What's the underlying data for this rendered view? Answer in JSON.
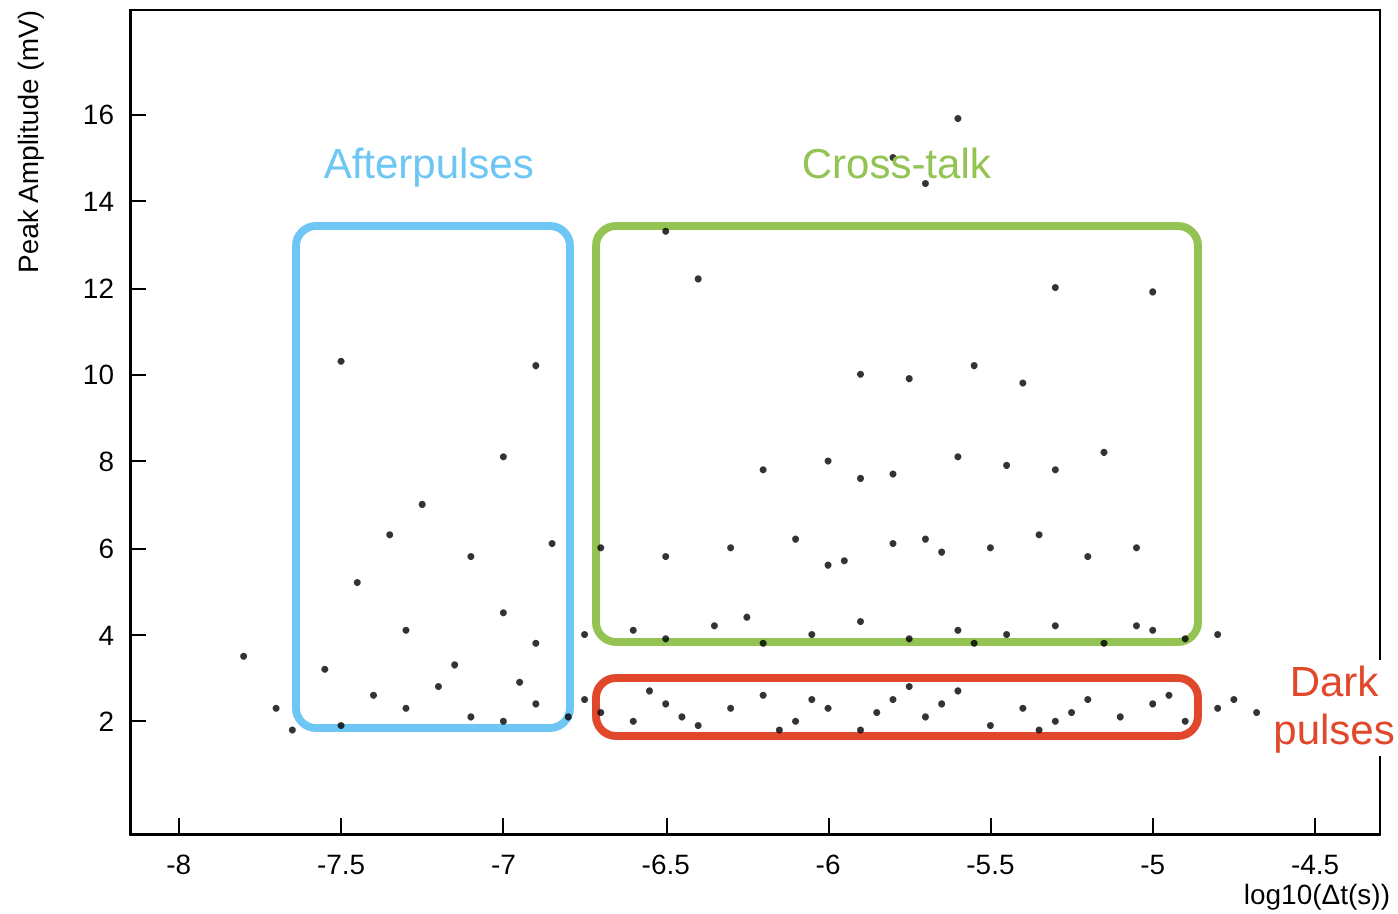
{
  "chart_data": {
    "type": "scatter",
    "xlabel": "log10(Δt(s))",
    "ylabel": "Peak Amplitude (mV)",
    "xlim": [
      -8.15,
      -4.3
    ],
    "ylim": [
      -0.6,
      18.4
    ],
    "xticks": [
      -8,
      -7.5,
      -7,
      -6.5,
      -6,
      -5.5,
      -5,
      -4.5
    ],
    "yticks": [
      2,
      4,
      6,
      8,
      10,
      12,
      14,
      16
    ],
    "grid": false,
    "marker": "circle",
    "annotations": [
      "Afterpulses",
      "Cross-talk",
      "Dark pulses"
    ],
    "series": [
      {
        "color": "#000000",
        "x": [
          -6.7,
          -6.6,
          -6.5,
          -6.4,
          -6.3,
          -6.2,
          -6.1,
          -6.0,
          -5.9,
          -5.8,
          -5.7,
          -5.6,
          -5.5,
          -5.4,
          -5.3,
          -5.2,
          -5.1,
          -5.0,
          -4.9,
          -6.55,
          -6.15,
          -5.75,
          -5.35,
          -4.95,
          -6.45,
          -5.85,
          -5.25,
          -5.65,
          -6.05,
          -4.8,
          -6.6,
          -6.5,
          -6.35,
          -6.2,
          -6.05,
          -5.9,
          -5.75,
          -5.6,
          -5.45,
          -5.3,
          -5.15,
          -5.0,
          -4.9,
          -6.25,
          -5.55,
          -5.05,
          -6.5,
          -6.3,
          -6.1,
          -5.95,
          -5.8,
          -5.65,
          -5.5,
          -5.35,
          -5.2,
          -5.05,
          -6.0,
          -5.7,
          -6.2,
          -6.0,
          -5.8,
          -5.6,
          -5.45,
          -5.3,
          -5.15,
          -5.9,
          -5.9,
          -5.75,
          -5.55,
          -5.4,
          -6.4,
          -5.3,
          -5.6,
          -5.7,
          -6.5,
          -5.8,
          -5.0,
          -7.5,
          -7.3,
          -7.1,
          -6.9,
          -6.8,
          -7.4,
          -7.2,
          -7.0,
          -6.75,
          -7.55,
          -7.3,
          -7.0,
          -6.9,
          -7.45,
          -7.1,
          -6.85,
          -7.25,
          -7.0,
          -6.9,
          -7.5,
          -7.35,
          -7.65,
          -7.8,
          -7.7,
          -6.95,
          -7.15,
          -4.68,
          -4.75,
          -6.75,
          -6.7,
          -4.8
        ],
        "values": [
          2.2,
          2.0,
          2.4,
          1.9,
          2.3,
          2.6,
          2.0,
          2.3,
          1.8,
          2.5,
          2.1,
          2.7,
          1.9,
          2.3,
          2.0,
          2.5,
          2.1,
          2.4,
          2.0,
          2.7,
          1.8,
          2.8,
          1.8,
          2.6,
          2.1,
          2.2,
          2.2,
          2.4,
          2.5,
          2.3,
          4.1,
          3.9,
          4.2,
          3.8,
          4.0,
          4.3,
          3.9,
          4.1,
          4.0,
          4.2,
          3.8,
          4.1,
          3.9,
          4.4,
          3.8,
          4.2,
          5.8,
          6.0,
          6.2,
          5.7,
          6.1,
          5.9,
          6.0,
          6.3,
          5.8,
          6.0,
          5.6,
          6.2,
          7.8,
          8.0,
          7.7,
          8.1,
          7.9,
          7.8,
          8.2,
          7.6,
          10.0,
          9.9,
          10.2,
          9.8,
          12.2,
          12.0,
          15.9,
          14.4,
          13.3,
          15.0,
          11.9,
          1.9,
          2.3,
          2.1,
          2.4,
          2.1,
          2.6,
          2.8,
          2.0,
          2.5,
          3.2,
          4.1,
          4.5,
          3.8,
          5.2,
          5.8,
          6.1,
          7.0,
          8.1,
          10.2,
          10.3,
          6.3,
          1.8,
          3.5,
          2.3,
          2.9,
          3.3,
          2.2,
          2.5,
          4.0,
          6.0,
          4.0
        ]
      }
    ]
  }
}
